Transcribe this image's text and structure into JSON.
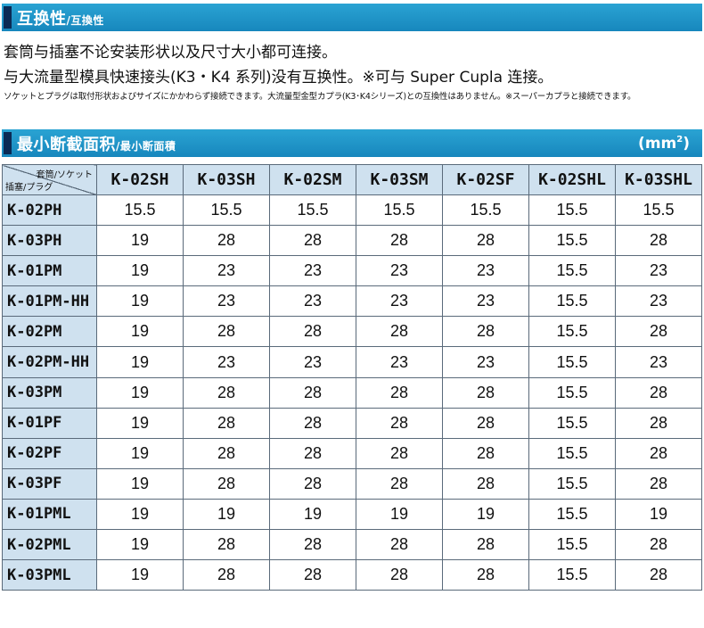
{
  "section1": {
    "title": "互换性",
    "subtitle": "/互換性"
  },
  "description": {
    "line1": "套筒与插塞不论安装形状以及尺寸大小都可连接。",
    "line2": "与大流量型模具快速接头(K3・K4 系列)没有互换性。※可与 Super Cupla 连接。",
    "line3": "ソケットとプラグは取付形状およびサイズにかかわらず接続できます。大流量型金型カプラ(K3･K4シリーズ)との互換性はありません。※スーパーカプラと接続できます。"
  },
  "section2": {
    "title": "最小断截面积",
    "subtitle": "/最小断面積",
    "unit": "mm",
    "unit_sup": "2"
  },
  "table": {
    "corner_top": "套筒/ソケット",
    "corner_bottom": "插塞/プラグ",
    "columns": [
      "K-02SH",
      "K-03SH",
      "K-02SM",
      "K-03SM",
      "K-02SF",
      "K-02SHL",
      "K-03SHL"
    ],
    "rows": [
      {
        "label": "K-02PH",
        "values": [
          "15.5",
          "15.5",
          "15.5",
          "15.5",
          "15.5",
          "15.5",
          "15.5"
        ]
      },
      {
        "label": "K-03PH",
        "values": [
          "19",
          "28",
          "28",
          "28",
          "28",
          "15.5",
          "28"
        ]
      },
      {
        "label": "K-01PM",
        "values": [
          "19",
          "23",
          "23",
          "23",
          "23",
          "15.5",
          "23"
        ]
      },
      {
        "label": "K-01PM-HH",
        "values": [
          "19",
          "23",
          "23",
          "23",
          "23",
          "15.5",
          "23"
        ]
      },
      {
        "label": "K-02PM",
        "values": [
          "19",
          "28",
          "28",
          "28",
          "28",
          "15.5",
          "28"
        ]
      },
      {
        "label": "K-02PM-HH",
        "values": [
          "19",
          "23",
          "23",
          "23",
          "23",
          "15.5",
          "23"
        ]
      },
      {
        "label": "K-03PM",
        "values": [
          "19",
          "28",
          "28",
          "28",
          "28",
          "15.5",
          "28"
        ]
      },
      {
        "label": "K-01PF",
        "values": [
          "19",
          "28",
          "28",
          "28",
          "28",
          "15.5",
          "28"
        ]
      },
      {
        "label": "K-02PF",
        "values": [
          "19",
          "28",
          "28",
          "28",
          "28",
          "15.5",
          "28"
        ]
      },
      {
        "label": "K-03PF",
        "values": [
          "19",
          "28",
          "28",
          "28",
          "28",
          "15.5",
          "28"
        ]
      },
      {
        "label": "K-01PML",
        "values": [
          "19",
          "19",
          "19",
          "19",
          "19",
          "15.5",
          "19"
        ]
      },
      {
        "label": "K-02PML",
        "values": [
          "19",
          "28",
          "28",
          "28",
          "28",
          "15.5",
          "28"
        ]
      },
      {
        "label": "K-03PML",
        "values": [
          "19",
          "28",
          "28",
          "28",
          "28",
          "15.5",
          "28"
        ]
      }
    ]
  },
  "colors": {
    "header_bar": "#1f95c8",
    "header_mark": "#0b2a55",
    "table_header_bg": "#cfe1ef"
  }
}
